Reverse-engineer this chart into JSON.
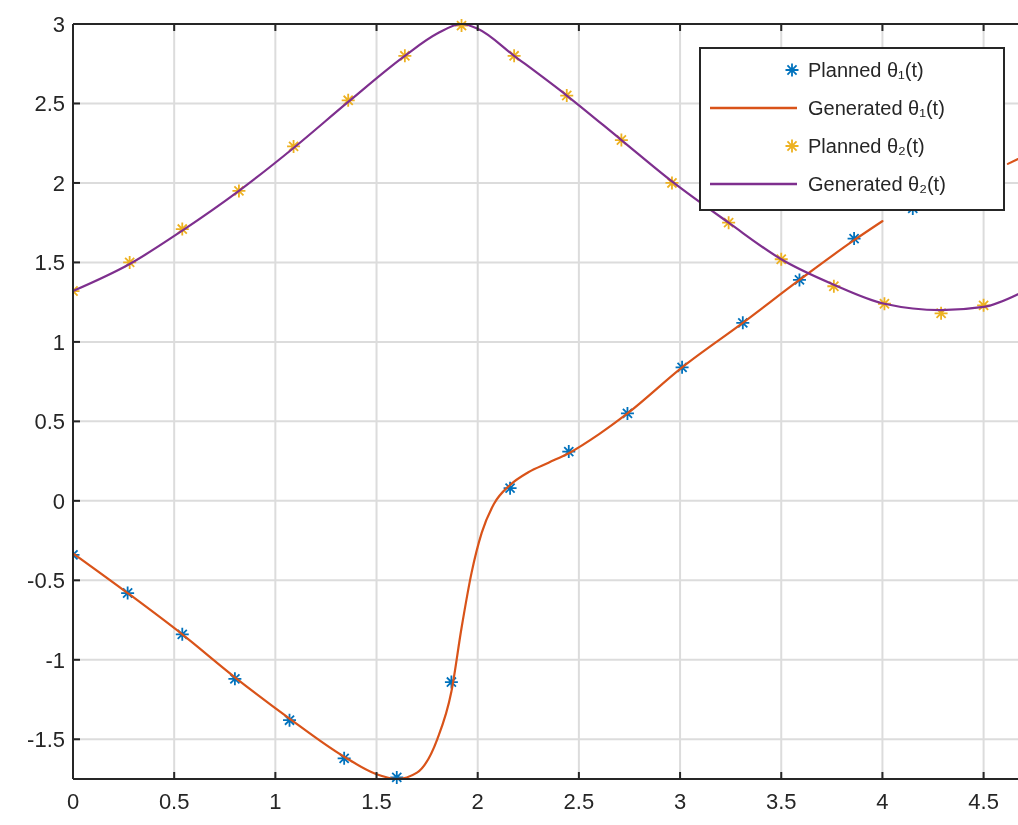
{
  "chart_data": {
    "type": "line",
    "xlim": [
      0,
      4.67
    ],
    "xticks": [
      0,
      0.5,
      1,
      1.5,
      2,
      2.5,
      3,
      3.5,
      4,
      4.5
    ],
    "ylim": [
      -1.75,
      3
    ],
    "yticks": [
      -1.5,
      -1,
      -0.5,
      0,
      0.5,
      1,
      1.5,
      2,
      2.5,
      3
    ],
    "grid": true,
    "legend": "top right",
    "series": [
      {
        "name": "Planned  θ₁(t)",
        "type": "scatter",
        "marker": "cross",
        "color": "#0072bd",
        "x": [
          0,
          0.27,
          0.54,
          0.8,
          1.07,
          1.34,
          1.6,
          1.87,
          2.16,
          2.45,
          2.74,
          3.01,
          3.31,
          3.59,
          3.86,
          4.15
        ],
        "values": [
          -0.34,
          -0.58,
          -0.84,
          -1.12,
          -1.38,
          -1.62,
          -1.74,
          -1.14,
          0.08,
          0.31,
          0.55,
          0.84,
          1.12,
          1.39,
          1.65,
          1.84
        ]
      },
      {
        "name": "Generated  θ₁(t)",
        "marker": "none",
        "color": "#d95319",
        "x": [
          0,
          0.27,
          0.54,
          0.8,
          1.07,
          1.34,
          1.5,
          1.6,
          1.7,
          1.8,
          1.87,
          1.92,
          1.97,
          2.02,
          2.08,
          2.16,
          2.25,
          2.35,
          2.45,
          2.6,
          2.74,
          3.01,
          3.31,
          3.59,
          3.86,
          4.0,
          4.15,
          4.4,
          4.62,
          4.67
        ],
        "values": [
          -0.33,
          -0.58,
          -0.84,
          -1.11,
          -1.37,
          -1.61,
          -1.72,
          -1.75,
          -1.71,
          -1.5,
          -1.2,
          -0.8,
          -0.45,
          -0.2,
          -0.02,
          0.1,
          0.18,
          0.24,
          0.3,
          0.42,
          0.55,
          0.84,
          1.12,
          1.39,
          1.64,
          1.76,
          null,
          null,
          2.12,
          2.15
        ]
      },
      {
        "name": "Planned  θ₂(t)",
        "type": "scatter",
        "marker": "cross",
        "color": "#edb120",
        "x": [
          0,
          0.28,
          0.54,
          0.82,
          1.09,
          1.36,
          1.64,
          1.92,
          2.18,
          2.44,
          2.71,
          2.96,
          3.24,
          3.5,
          3.76,
          4.01,
          4.29,
          4.5
        ],
        "values": [
          1.32,
          1.5,
          1.71,
          1.95,
          2.23,
          2.52,
          2.8,
          2.99,
          2.8,
          2.55,
          2.27,
          2.0,
          1.75,
          1.52,
          1.35,
          1.24,
          1.18,
          1.23
        ]
      },
      {
        "name": "Generated  θ₂(t)",
        "marker": "none",
        "color": "#7e2f8e",
        "x": [
          0,
          0.28,
          0.54,
          0.82,
          1.09,
          1.36,
          1.64,
          1.8,
          1.92,
          2.0,
          2.18,
          2.44,
          2.71,
          2.96,
          3.24,
          3.5,
          3.76,
          4.01,
          4.29,
          4.5,
          4.67
        ],
        "values": [
          1.32,
          1.49,
          1.7,
          1.95,
          2.22,
          2.51,
          2.8,
          2.94,
          3.0,
          2.97,
          2.8,
          2.55,
          2.27,
          2.01,
          1.75,
          1.52,
          1.36,
          1.24,
          1.2,
          1.22,
          1.3
        ]
      }
    ]
  }
}
